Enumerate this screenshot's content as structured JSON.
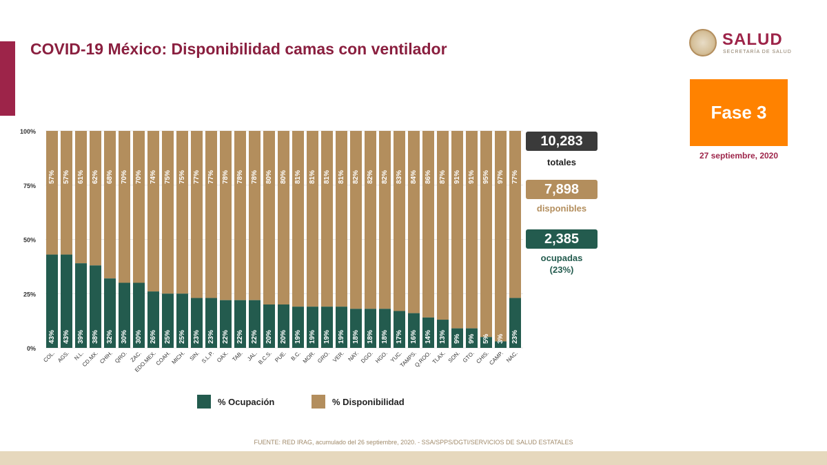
{
  "title": "COVID-19 México: Disponibilidad camas con ventilador",
  "logo": {
    "word": "SALUD",
    "sub": "SECRETARÍA DE SALUD"
  },
  "phase": "Fase 3",
  "date": "27 septiembre, 2020",
  "totals": {
    "value": "10,283",
    "label": "totales"
  },
  "available": {
    "value": "7,898",
    "label": "disponibles"
  },
  "occupied": {
    "value": "2,385",
    "label": "ocupadas",
    "pct": "(23%)"
  },
  "colors": {
    "occupation": "#235b4e",
    "availability": "#b38e5d",
    "total": "#3a3a3a",
    "brand": "#9d2449",
    "phase": "#ff8200"
  },
  "footer": "FUENTE: RED IRAG, acumulado del 26 septiembre, 2020. -  SSA/SPPS/DGTI/SERVICIOS DE SALUD ESTATALES",
  "chart_data": {
    "type": "bar",
    "stacked": true,
    "yticks": [
      "0%",
      "25%",
      "50%",
      "75%",
      "100%"
    ],
    "ylim": [
      0,
      100
    ],
    "categories": [
      "COL.",
      "AGS.",
      "N.L.",
      "CD.MX.",
      "CHIH.",
      "QRO.",
      "ZAC.",
      "EDO.MEX.",
      "COAH.",
      "MICH.",
      "SIN.",
      "S.L.P.",
      "OAX.",
      "TAB.",
      "JAL.",
      "B.C.S.",
      "PUE.",
      "B.C.",
      "MOR.",
      "GRO.",
      "VER.",
      "NAY.",
      "DGO.",
      "HGO.",
      "YUC.",
      "TAMPS.",
      "Q.ROO.",
      "TLAX.",
      "SON.",
      "GTO.",
      "CHIS.",
      "CAMP.",
      "NAC."
    ],
    "series": [
      {
        "name": "% Ocupación",
        "values": [
          43,
          43,
          39,
          38,
          32,
          30,
          30,
          26,
          25,
          25,
          23,
          23,
          22,
          22,
          22,
          20,
          20,
          19,
          19,
          19,
          19,
          18,
          18,
          18,
          17,
          16,
          14,
          13,
          9,
          9,
          5,
          3,
          23
        ]
      },
      {
        "name": "% Disponibilidad",
        "values": [
          57,
          57,
          61,
          62,
          68,
          70,
          70,
          74,
          75,
          75,
          77,
          77,
          78,
          78,
          78,
          80,
          80,
          81,
          81,
          81,
          81,
          82,
          82,
          82,
          83,
          84,
          86,
          87,
          91,
          91,
          95,
          97,
          77
        ]
      }
    ]
  }
}
